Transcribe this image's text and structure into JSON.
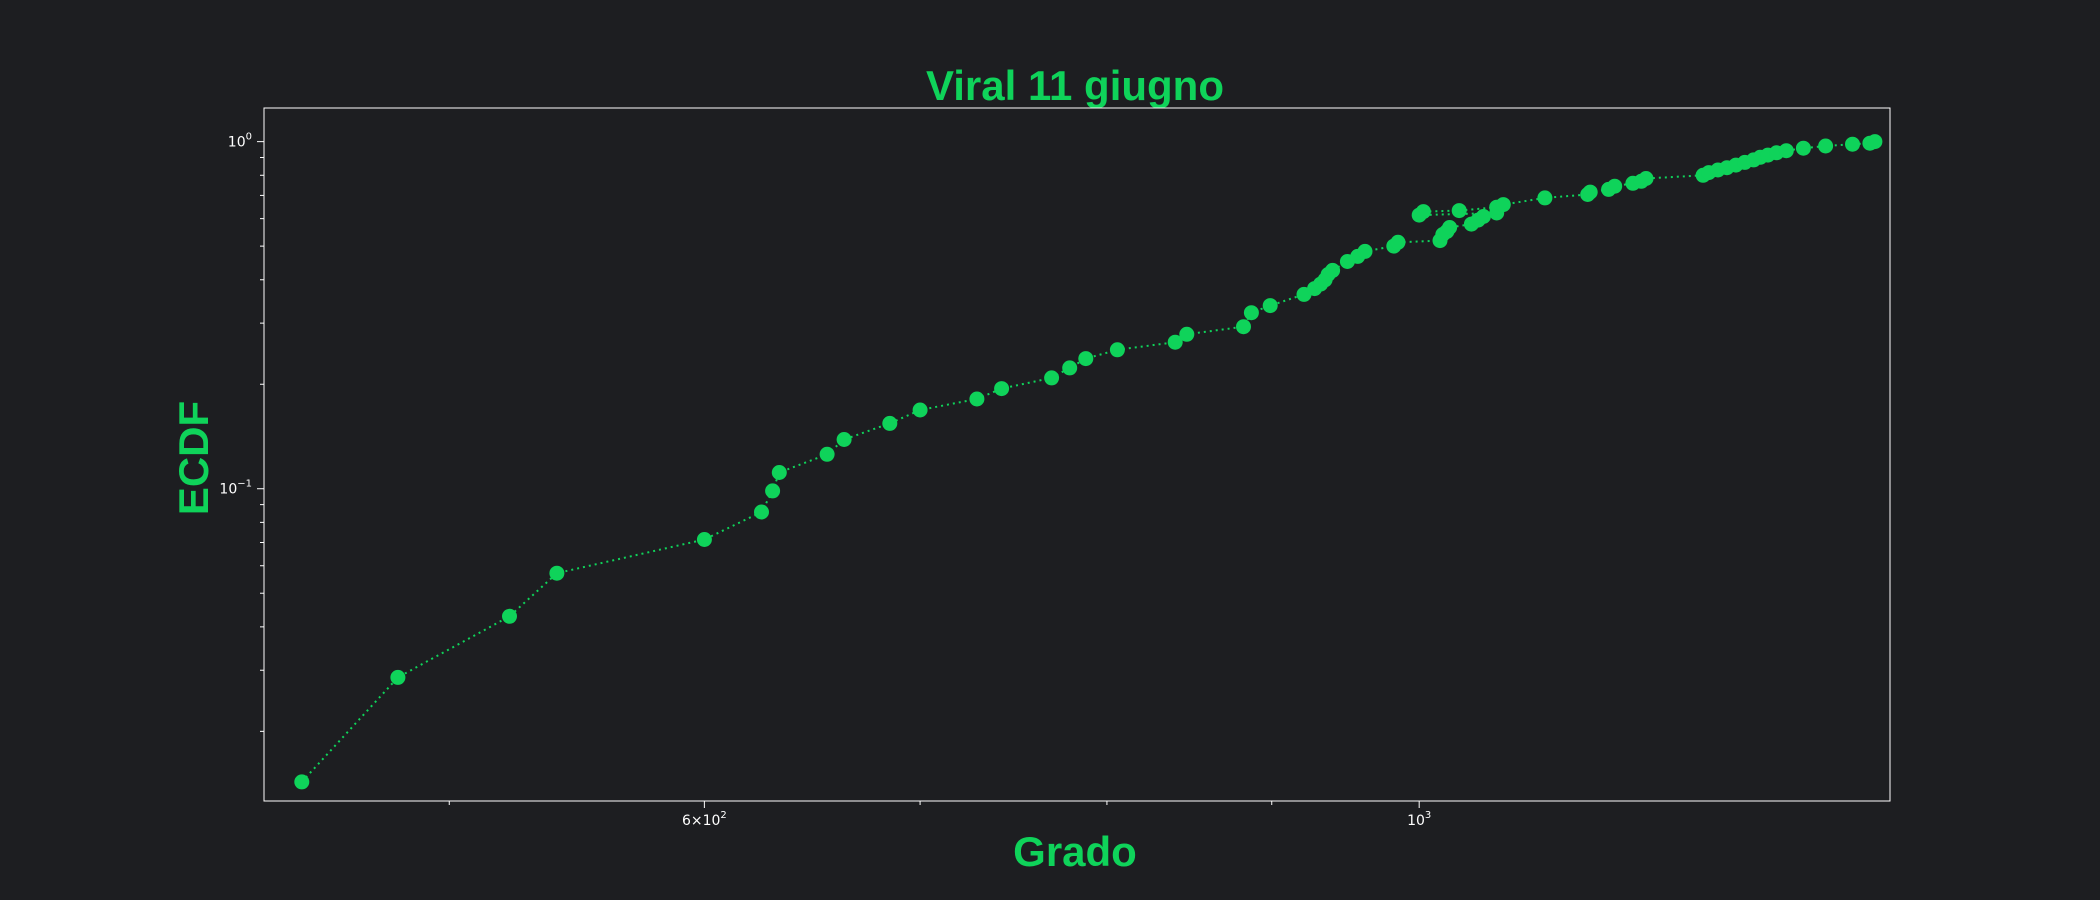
{
  "chart_data": {
    "type": "scatter",
    "title": "Viral 11 giugno",
    "xlabel": "Grado",
    "ylabel": "ECDF",
    "xscale": "log",
    "yscale": "log",
    "xlim": [
      438,
      1400
    ],
    "ylim": [
      0.0126,
      1.25
    ],
    "grid": false,
    "legend": "none",
    "line_style": "dotted",
    "colors": {
      "accent": "#0fd35a",
      "background": "#1d1e21",
      "axes": "#ffffff"
    },
    "x_ticks": [
      {
        "value": 600,
        "base": "6",
        "mult": "×10",
        "exp": "2"
      },
      {
        "value": 1000,
        "base": "10",
        "mult": "",
        "exp": "3"
      }
    ],
    "x_minor_ticks": [
      500,
      700,
      800,
      900
    ],
    "y_ticks": [
      {
        "value": 0.1,
        "base": "10",
        "exp": "−1"
      },
      {
        "value": 1.0,
        "base": "10",
        "exp": "0"
      }
    ],
    "x": [
      450,
      482,
      522,
      540,
      600,
      625,
      630,
      633,
      655,
      663,
      685,
      700,
      729,
      742,
      769,
      779,
      788,
      806,
      840,
      847,
      882,
      887,
      899,
      921,
      928,
      932,
      935,
      937,
      940,
      950,
      957,
      962,
      982,
      985,
      1015,
      1017,
      1020,
      1022,
      1038,
      1043,
      1047,
      1057,
      1000,
      1003,
      1029,
      1057,
      1062,
      1094,
      1128,
      1130,
      1145,
      1150,
      1165,
      1172,
      1176,
      1225,
      1230,
      1238,
      1246,
      1254,
      1262,
      1270,
      1276,
      1283,
      1291,
      1300,
      1316,
      1337,
      1363,
      1380,
      1385
    ],
    "y": [
      0.0143,
      0.0286,
      0.0429,
      0.0571,
      0.0714,
      0.0857,
      0.0986,
      0.1114,
      0.1257,
      0.1386,
      0.1543,
      0.1686,
      0.1814,
      0.1943,
      0.2086,
      0.2229,
      0.2371,
      0.2514,
      0.2643,
      0.2786,
      0.2929,
      0.3214,
      0.3371,
      0.3629,
      0.3771,
      0.3886,
      0.4,
      0.4143,
      0.4257,
      0.4514,
      0.4671,
      0.4829,
      0.5,
      0.5129,
      0.5186,
      0.54,
      0.5514,
      0.5657,
      0.5786,
      0.5943,
      0.6086,
      0.6229,
      0.6143,
      0.6286,
      0.6329,
      0.6471,
      0.6586,
      0.6886,
      0.7043,
      0.7157,
      0.7286,
      0.7443,
      0.7586,
      0.7686,
      0.7829,
      0.8,
      0.8143,
      0.8286,
      0.8414,
      0.8557,
      0.8714,
      0.8857,
      0.9014,
      0.9143,
      0.9286,
      0.9414,
      0.9571,
      0.9714,
      0.9829,
      0.99,
      1.0
    ]
  }
}
